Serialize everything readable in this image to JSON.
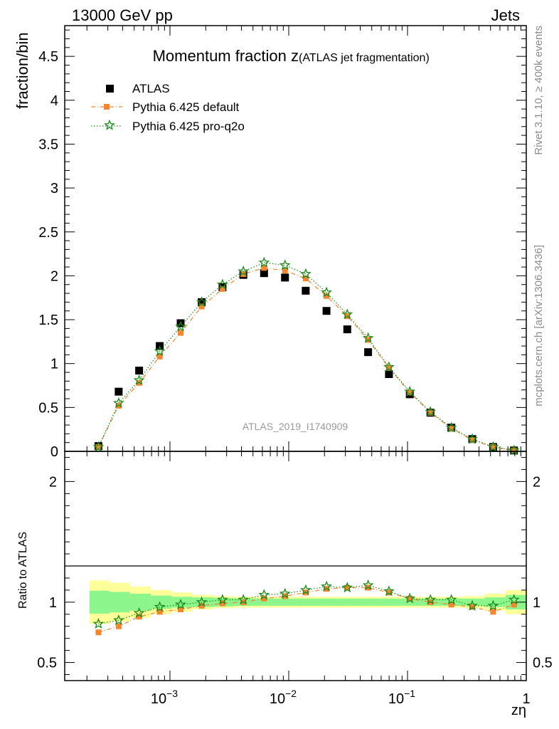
{
  "header": {
    "left": "13000 GeV pp",
    "right": "Jets"
  },
  "side_labels": {
    "rivet": "Rivet 3.1.10, ≥ 400k events",
    "mcplots": "mcplots.cern.ch [arXiv:1306.3436]"
  },
  "chart_data": [
    {
      "type": "scatter",
      "title_main": "Momentum fraction z",
      "title_sub": "(ATLAS jet fragmentation)",
      "ylabel": "fraction/bin",
      "xlabel": "zη",
      "watermark": "ATLAS_2019_I1740909",
      "x_scale": "log",
      "xlim": [
        0.00013,
        1
      ],
      "ylim": [
        0,
        4.85
      ],
      "y_ticks": [
        "0",
        "0.5",
        "1",
        "1.5",
        "2",
        "2.5",
        "3",
        "3.5",
        "4",
        "4.5"
      ],
      "x_tick_labels": [
        {
          "base": "10",
          "exp": "−3"
        },
        {
          "base": "10",
          "exp": "−2"
        },
        {
          "base": "10",
          "exp": "−1"
        },
        {
          "base": "1",
          "exp": ""
        }
      ],
      "legend_position": "top-left",
      "x": [
        0.00025,
        0.00037,
        0.00055,
        0.00082,
        0.00123,
        0.00185,
        0.00277,
        0.00415,
        0.0062,
        0.0093,
        0.0139,
        0.0208,
        0.0311,
        0.0466,
        0.0698,
        0.1045,
        0.156,
        0.234,
        0.351,
        0.526,
        0.788
      ],
      "series": [
        {
          "name": "ATLAS",
          "color": "#000000",
          "marker": "square",
          "values": [
            0.06,
            0.68,
            0.92,
            1.2,
            1.46,
            1.7,
            1.87,
            2.01,
            2.03,
            1.98,
            1.83,
            1.6,
            1.39,
            1.13,
            0.88,
            0.65,
            0.44,
            0.27,
            0.14,
            0.05,
            0.01
          ]
        },
        {
          "name": "Pythia 6.425 default",
          "color": "#f5852f",
          "marker": "square-small",
          "line": "dashdot",
          "values": [
            0.05,
            0.52,
            0.78,
            1.08,
            1.35,
            1.65,
            1.85,
            2.02,
            2.09,
            2.06,
            1.97,
            1.77,
            1.54,
            1.27,
            0.95,
            0.67,
            0.44,
            0.26,
            0.13,
            0.05,
            0.01
          ]
        },
        {
          "name": "Pythia 6.425 pro-q2o",
          "color": "#1a8a1a",
          "marker": "star",
          "line": "dotted",
          "values": [
            0.05,
            0.55,
            0.81,
            1.14,
            1.42,
            1.7,
            1.9,
            2.05,
            2.15,
            2.12,
            2.02,
            1.81,
            1.56,
            1.29,
            0.96,
            0.68,
            0.45,
            0.27,
            0.14,
            0.05,
            0.01
          ]
        }
      ]
    },
    {
      "type": "scatter",
      "ylabel": "Ratio to ATLAS",
      "x_scale": "log",
      "xlim": [
        0.00013,
        1
      ],
      "ylim": [
        0.35,
        2.25
      ],
      "y_ticks": [
        "0.5",
        "1",
        "2"
      ],
      "reference_line": 1,
      "band_colors": {
        "inner": "#8cf58c",
        "outer": "#ffff99"
      },
      "band_edges": [
        0.00021,
        0.00031,
        0.00046,
        0.00069,
        0.00103,
        0.00155,
        0.00232,
        0.00348,
        0.0052,
        0.0078,
        0.0117,
        0.0175,
        0.0262,
        0.0393,
        0.059,
        0.0885,
        0.1325,
        0.199,
        0.298,
        0.447,
        0.67,
        1.0
      ],
      "band_inner": [
        0.095,
        0.085,
        0.07,
        0.055,
        0.045,
        0.04,
        0.035,
        0.03,
        0.03,
        0.03,
        0.03,
        0.03,
        0.03,
        0.03,
        0.03,
        0.03,
        0.03,
        0.03,
        0.03,
        0.04,
        0.06
      ],
      "band_outer": [
        0.18,
        0.16,
        0.13,
        0.1,
        0.08,
        0.06,
        0.05,
        0.045,
        0.045,
        0.045,
        0.045,
        0.045,
        0.045,
        0.045,
        0.045,
        0.045,
        0.045,
        0.045,
        0.05,
        0.07,
        0.1
      ],
      "series": [
        {
          "name": "Pythia 6.425 default",
          "color": "#f5852f",
          "values": [
            0.75,
            0.8,
            0.88,
            0.92,
            0.94,
            0.97,
            0.99,
            1.0,
            1.03,
            1.05,
            1.08,
            1.11,
            1.12,
            1.12,
            1.08,
            1.03,
            1.0,
            0.98,
            0.96,
            0.92,
            0.98
          ]
        },
        {
          "name": "Pythia 6.425 pro-q2o",
          "color": "#1a8a1a",
          "values": [
            0.82,
            0.85,
            0.91,
            0.96,
            0.98,
            1.0,
            1.02,
            1.02,
            1.06,
            1.07,
            1.1,
            1.13,
            1.12,
            1.14,
            1.09,
            1.03,
            1.02,
            1.02,
            0.97,
            0.97,
            1.02
          ]
        }
      ]
    }
  ]
}
